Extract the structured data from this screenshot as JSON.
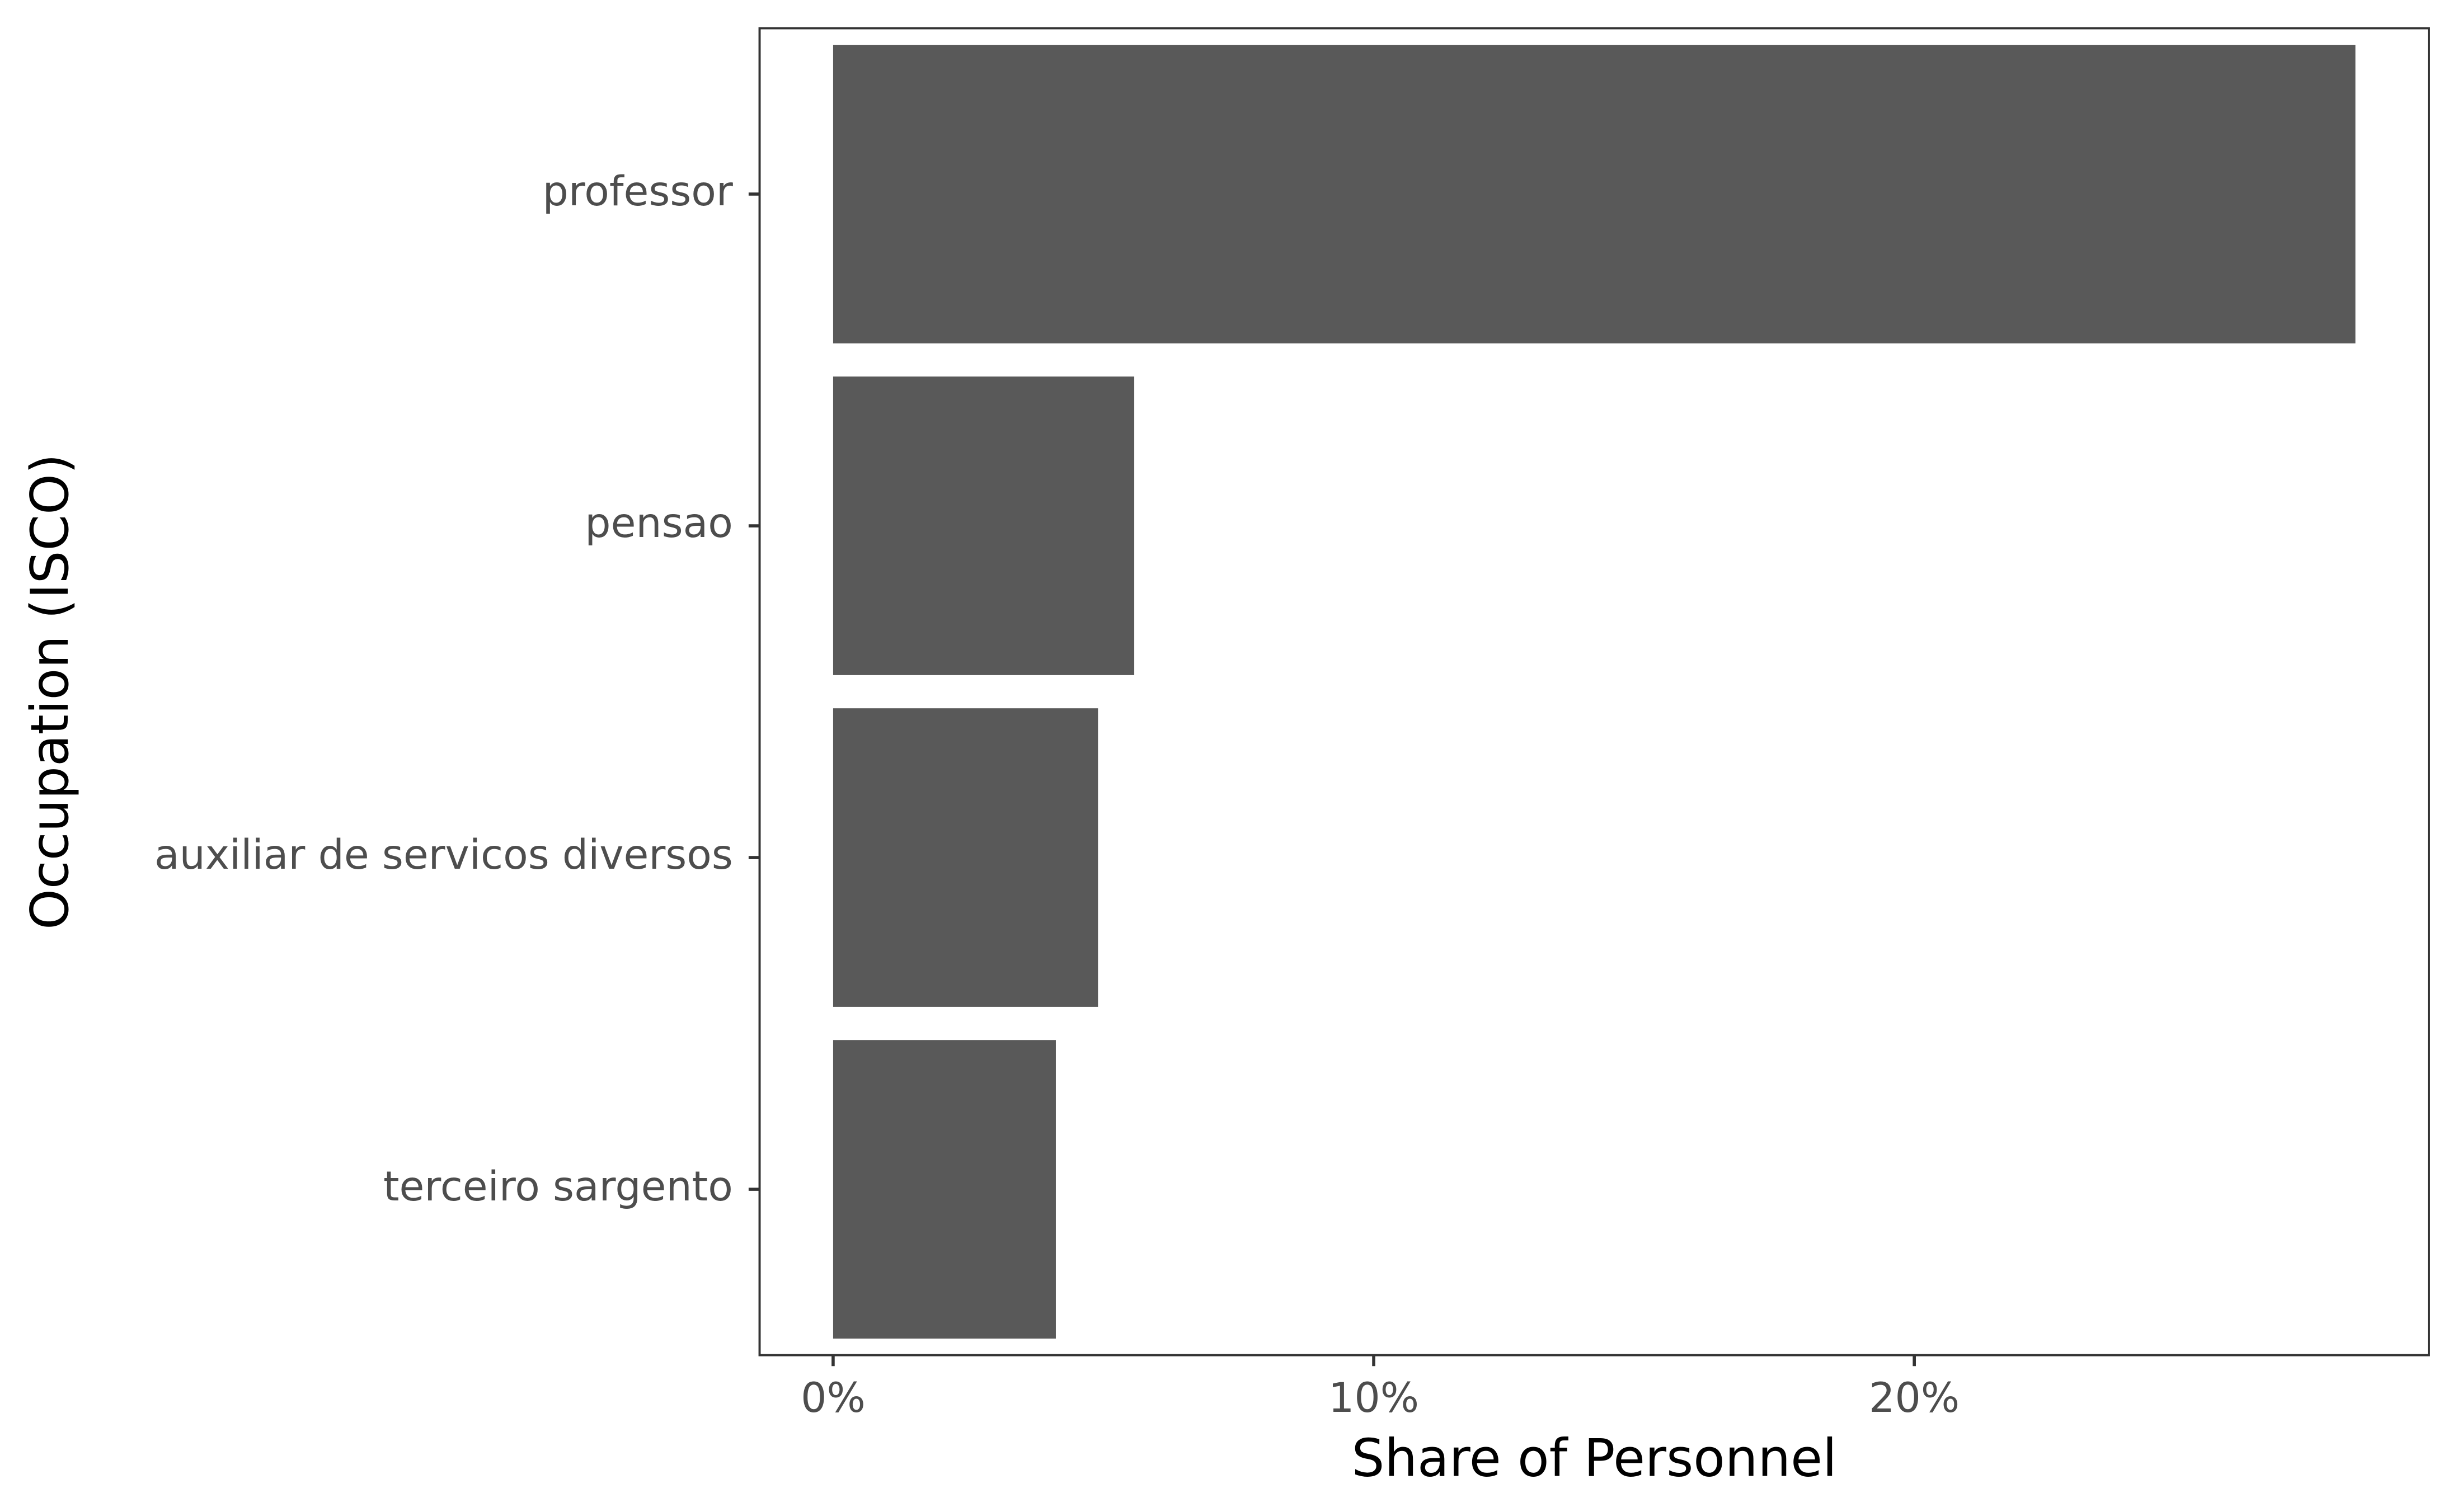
{
  "chart_data": {
    "type": "bar",
    "orientation": "horizontal",
    "x_label": "Share of Personnel",
    "y_label": "Occupation (ISCO)",
    "categories": [
      "professor",
      "pensao",
      "auxiliar de servicos diversos",
      "terceiro sargento"
    ],
    "values": [
      28.16,
      5.57,
      4.9,
      4.12
    ],
    "color": "#595959",
    "xlim": [
      -1.36,
      29.52
    ],
    "xticks": [
      {
        "value": 0,
        "label": "0%"
      },
      {
        "value": 10,
        "label": "10%"
      },
      {
        "value": 20,
        "label": "20%"
      }
    ],
    "grid": false
  }
}
